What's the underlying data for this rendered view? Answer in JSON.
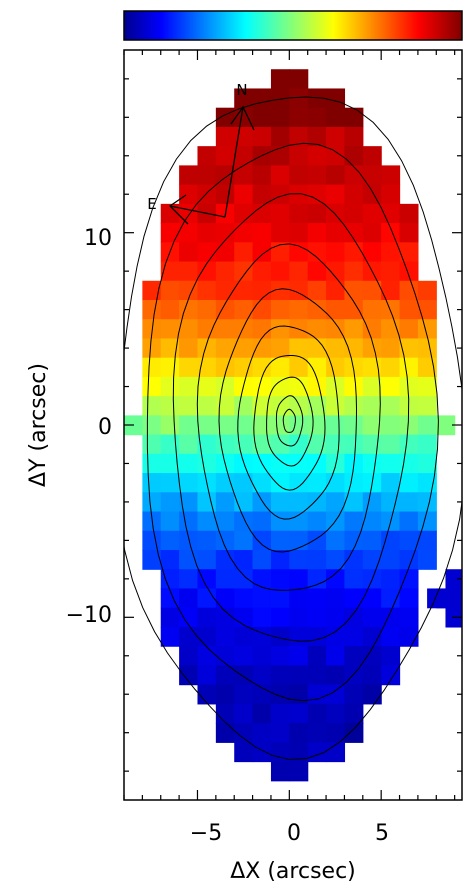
{
  "chart_data": {
    "type": "heatmap",
    "description_units": "arcsec",
    "xlabel": "ΔX (arcsec)",
    "ylabel": "ΔY (arcsec)",
    "xlim": [
      -9,
      9.4
    ],
    "ylim": [
      -19.5,
      19.5
    ],
    "xticks": [
      -5,
      0,
      5
    ],
    "yticks": [
      -10,
      0,
      10
    ],
    "xtick_labels": [
      "−5",
      "0",
      "5"
    ],
    "ytick_labels": [
      "−10",
      "0",
      "10"
    ],
    "colorbar": {
      "colormap": "jet",
      "position": "top",
      "labels_shown": false
    },
    "field": {
      "pixel_size_arcsec": 1.0,
      "gradient": "north-south",
      "top_value": 1.0,
      "bottom_value": 0.05,
      "note_values_normalized": "color scale runs 0 (blue) at bottom to 1 (dark red) at top"
    },
    "contours": {
      "center": [
        0.0,
        0.2
      ],
      "axis_ratio": 0.55,
      "semi_major_axes": [
        0.6,
        1.3,
        2.3,
        3.5,
        5.0,
        6.8,
        9.0,
        11.6,
        14.4,
        17.2
      ]
    },
    "compass": {
      "north_label": "N",
      "east_label": "E"
    }
  }
}
